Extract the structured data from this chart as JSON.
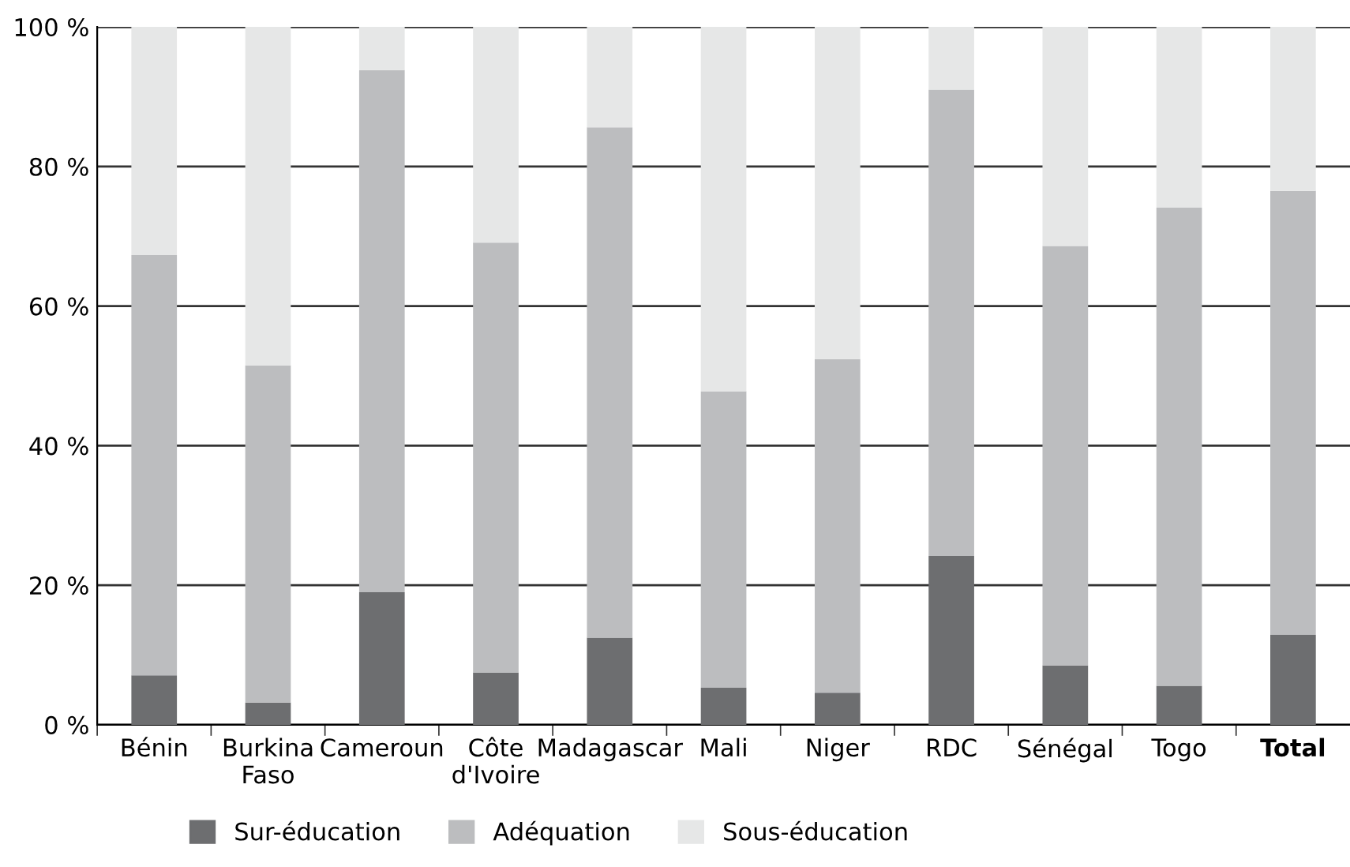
{
  "chart_data": {
    "type": "bar",
    "stacked": true,
    "categories": [
      "Bénin",
      "Burkina\nFaso",
      "Cameroun",
      "Côte\nd'Ivoire",
      "Madagascar",
      "Mali",
      "Niger",
      "RDC",
      "Sénégal",
      "Togo",
      "Total"
    ],
    "series": [
      {
        "name": "Sur-éducation",
        "color": "#6d6e70",
        "values": [
          7.1,
          3.2,
          19.0,
          7.5,
          12.5,
          5.3,
          4.6,
          24.2,
          8.5,
          5.6,
          12.9
        ]
      },
      {
        "name": "Adéquation",
        "color": "#bcbdbf",
        "values": [
          60.2,
          48.3,
          74.8,
          61.6,
          73.1,
          42.5,
          47.8,
          66.8,
          60.1,
          68.5,
          63.6
        ]
      },
      {
        "name": "Sous-éducation",
        "color": "#e6e7e7",
        "values": [
          32.7,
          48.5,
          6.2,
          30.9,
          14.4,
          52.2,
          47.6,
          9.0,
          31.4,
          25.9,
          23.5
        ]
      }
    ],
    "ylim": [
      0,
      100
    ],
    "yticks": [
      {
        "value": 0,
        "label": "0 %"
      },
      {
        "value": 20,
        "label": "20 %"
      },
      {
        "value": 40,
        "label": "40 %"
      },
      {
        "value": 60,
        "label": "60 %"
      },
      {
        "value": 80,
        "label": "80 %"
      },
      {
        "value": 100,
        "label": "100 %"
      }
    ],
    "grid": "y",
    "legend": "bottom left"
  }
}
